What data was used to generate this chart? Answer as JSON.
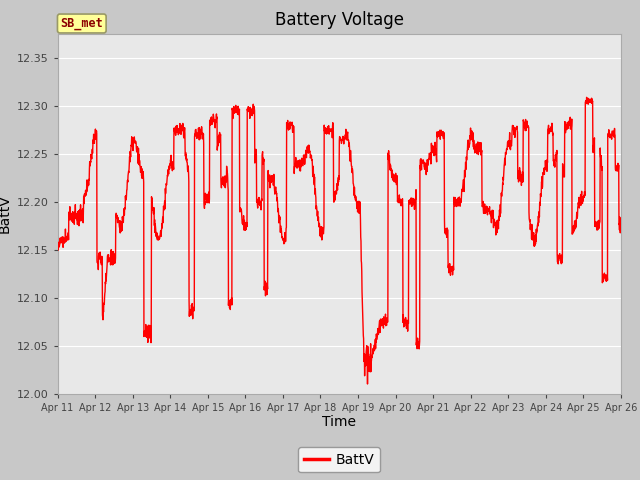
{
  "title": "Battery Voltage",
  "xlabel": "Time",
  "ylabel": "BattV",
  "ylim": [
    12.0,
    12.375
  ],
  "yticks": [
    12.0,
    12.05,
    12.1,
    12.15,
    12.2,
    12.25,
    12.3,
    12.35
  ],
  "line_color": "#FF0000",
  "line_width": 1.0,
  "fig_bg_color": "#C8C8C8",
  "plot_bg_color": "#E8E8E8",
  "legend_label": "BattV",
  "station_label": "SB_met",
  "station_label_color": "#8B0000",
  "station_box_facecolor": "#FFFF99",
  "station_box_edgecolor": "#999966",
  "x_tick_labels": [
    "Apr 11",
    "Apr 12",
    "Apr 13",
    "Apr 14",
    "Apr 15",
    "Apr 16",
    "Apr 17",
    "Apr 18",
    "Apr 19",
    "Apr 20",
    "Apr 21",
    "Apr 22",
    "Apr 23",
    "Apr 24",
    "Apr 25",
    "Apr 26"
  ],
  "title_fontsize": 12,
  "axis_label_fontsize": 10,
  "tick_fontsize": 8,
  "legend_fontsize": 10,
  "grid_color": "#FFFFFF",
  "spine_color": "#AAAAAA"
}
